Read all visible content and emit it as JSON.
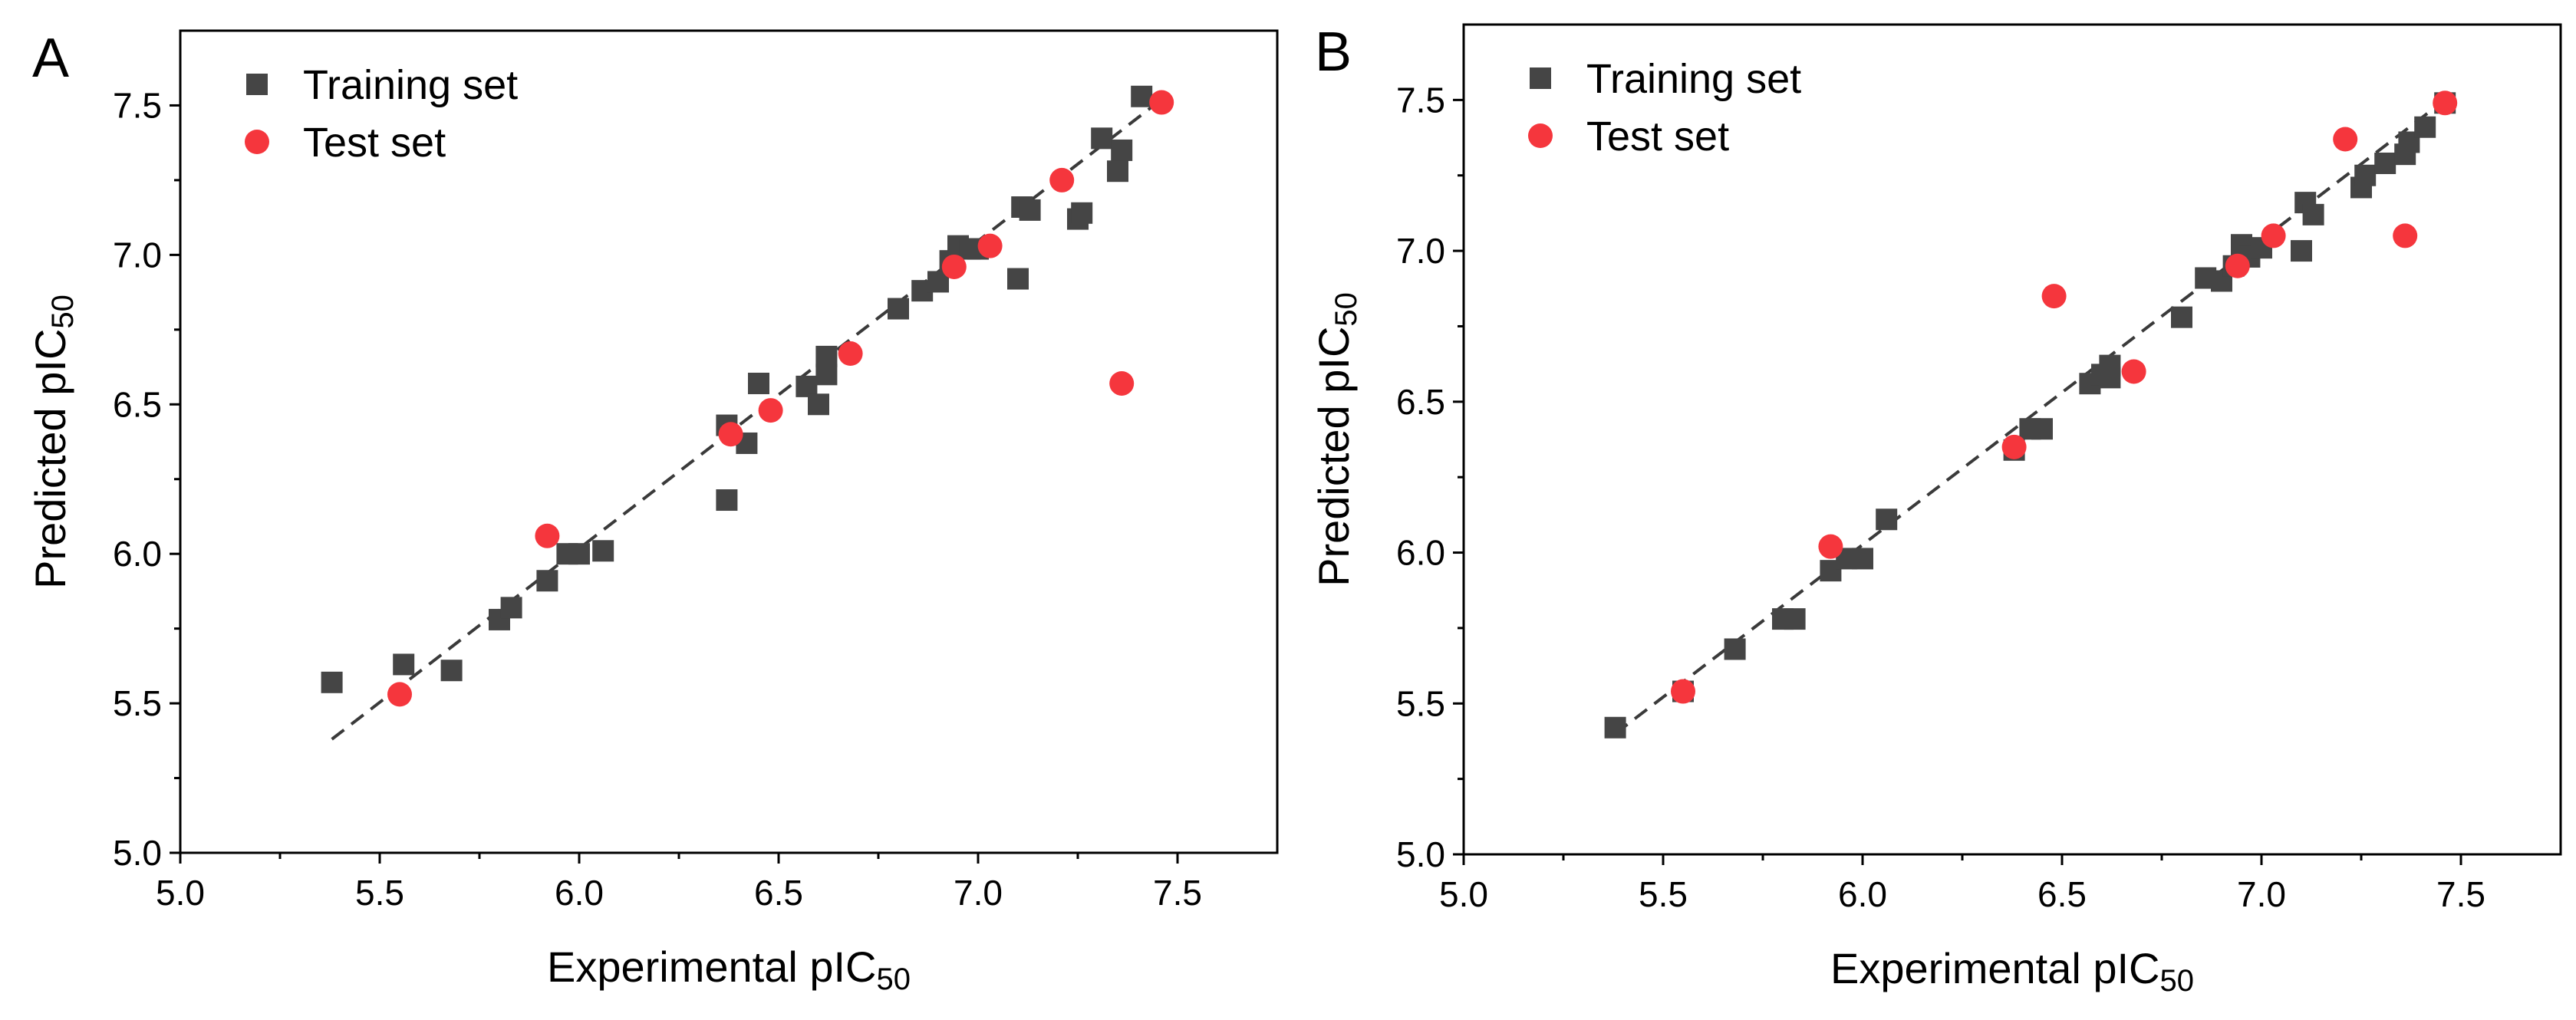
{
  "colors": {
    "training": "#454545",
    "test": "#f5363d",
    "fit": "#3a3a3a",
    "axis": "#000000"
  },
  "chart_data": [
    {
      "panel": "A",
      "type": "scatter",
      "xlabel": "Experimental pIC",
      "xlabel_sub": "50",
      "ylabel": "Predicted pIC",
      "ylabel_sub": "50",
      "xlim": [
        5.0,
        7.75
      ],
      "ylim": [
        5.0,
        7.75
      ],
      "xticks": [
        5.0,
        5.5,
        6.0,
        6.5,
        7.0,
        7.5
      ],
      "yticks": [
        5.0,
        5.5,
        6.0,
        6.5,
        7.0,
        7.5
      ],
      "xtick_labels": [
        "5.0",
        "5.5",
        "6.0",
        "6.5",
        "7.0",
        "7.5"
      ],
      "ytick_labels": [
        "5.0",
        "5.5",
        "6.0",
        "6.5",
        "7.0",
        "7.5"
      ],
      "legend": {
        "position": "top-left",
        "entries": [
          "Training set",
          "Test set"
        ]
      },
      "fit_line": {
        "x": [
          5.38,
          7.46
        ],
        "y": [
          5.38,
          7.52
        ]
      },
      "series": [
        {
          "name": "Training set",
          "marker": "square",
          "points": [
            [
              5.38,
              5.57
            ],
            [
              5.56,
              5.63
            ],
            [
              5.68,
              5.61
            ],
            [
              5.8,
              5.78
            ],
            [
              5.83,
              5.82
            ],
            [
              5.92,
              5.91
            ],
            [
              5.97,
              6.0
            ],
            [
              6.0,
              6.0
            ],
            [
              6.06,
              6.01
            ],
            [
              6.37,
              6.43
            ],
            [
              6.37,
              6.18
            ],
            [
              6.42,
              6.37
            ],
            [
              6.45,
              6.57
            ],
            [
              6.57,
              6.56
            ],
            [
              6.6,
              6.5
            ],
            [
              6.62,
              6.6
            ],
            [
              6.62,
              6.66
            ],
            [
              6.8,
              6.82
            ],
            [
              6.86,
              6.88
            ],
            [
              6.9,
              6.91
            ],
            [
              6.93,
              6.98
            ],
            [
              6.95,
              7.03
            ],
            [
              6.98,
              7.02
            ],
            [
              7.0,
              7.02
            ],
            [
              7.1,
              6.92
            ],
            [
              7.11,
              7.16
            ],
            [
              7.13,
              7.15
            ],
            [
              7.25,
              7.12
            ],
            [
              7.26,
              7.14
            ],
            [
              7.31,
              7.39
            ],
            [
              7.35,
              7.28
            ],
            [
              7.36,
              7.35
            ],
            [
              7.41,
              7.53
            ]
          ]
        },
        {
          "name": "Test set",
          "marker": "circle",
          "points": [
            [
              5.55,
              5.53
            ],
            [
              5.92,
              6.06
            ],
            [
              6.38,
              6.4
            ],
            [
              6.48,
              6.48
            ],
            [
              6.68,
              6.67
            ],
            [
              6.94,
              6.96
            ],
            [
              7.03,
              7.03
            ],
            [
              7.21,
              7.25
            ],
            [
              7.36,
              6.57
            ],
            [
              7.46,
              7.51
            ]
          ]
        }
      ]
    },
    {
      "panel": "B",
      "type": "scatter",
      "xlabel": "Experimental pIC",
      "xlabel_sub": "50",
      "ylabel": "Predicted pIC",
      "ylabel_sub": "50",
      "xlim": [
        5.0,
        7.75
      ],
      "ylim": [
        5.0,
        7.75
      ],
      "xticks": [
        5.0,
        5.5,
        6.0,
        6.5,
        7.0,
        7.5
      ],
      "yticks": [
        5.0,
        5.5,
        6.0,
        6.5,
        7.0,
        7.5
      ],
      "xtick_labels": [
        "5.0",
        "5.5",
        "6.0",
        "6.5",
        "7.0",
        "7.5"
      ],
      "ytick_labels": [
        "5.0",
        "5.5",
        "6.0",
        "6.5",
        "7.0",
        "7.5"
      ],
      "legend": {
        "position": "top-left",
        "entries": [
          "Training set",
          "Test set"
        ]
      },
      "fit_line": {
        "x": [
          5.38,
          7.46
        ],
        "y": [
          5.4,
          7.5
        ]
      },
      "series": [
        {
          "name": "Training set",
          "marker": "square",
          "points": [
            [
              5.38,
              5.42
            ],
            [
              5.55,
              5.54
            ],
            [
              5.68,
              5.68
            ],
            [
              5.8,
              5.78
            ],
            [
              5.83,
              5.78
            ],
            [
              5.92,
              5.94
            ],
            [
              5.96,
              5.98
            ],
            [
              6.0,
              5.98
            ],
            [
              6.06,
              6.11
            ],
            [
              6.38,
              6.34
            ],
            [
              6.42,
              6.41
            ],
            [
              6.45,
              6.41
            ],
            [
              6.57,
              6.56
            ],
            [
              6.6,
              6.59
            ],
            [
              6.62,
              6.62
            ],
            [
              6.62,
              6.58
            ],
            [
              6.8,
              6.78
            ],
            [
              6.86,
              6.91
            ],
            [
              6.9,
              6.9
            ],
            [
              6.93,
              6.95
            ],
            [
              6.95,
              7.02
            ],
            [
              6.97,
              6.98
            ],
            [
              7.0,
              7.01
            ],
            [
              7.1,
              7.0
            ],
            [
              7.11,
              7.16
            ],
            [
              7.13,
              7.12
            ],
            [
              7.25,
              7.21
            ],
            [
              7.26,
              7.25
            ],
            [
              7.31,
              7.29
            ],
            [
              7.36,
              7.32
            ],
            [
              7.37,
              7.36
            ],
            [
              7.41,
              7.41
            ],
            [
              7.46,
              7.49
            ]
          ]
        },
        {
          "name": "Test set",
          "marker": "circle",
          "points": [
            [
              5.55,
              5.54
            ],
            [
              5.92,
              6.02
            ],
            [
              6.38,
              6.35
            ],
            [
              6.48,
              6.85
            ],
            [
              6.68,
              6.6
            ],
            [
              6.94,
              6.95
            ],
            [
              7.03,
              7.05
            ],
            [
              7.21,
              7.37
            ],
            [
              7.36,
              7.05
            ],
            [
              7.46,
              7.49
            ]
          ]
        }
      ]
    }
  ]
}
